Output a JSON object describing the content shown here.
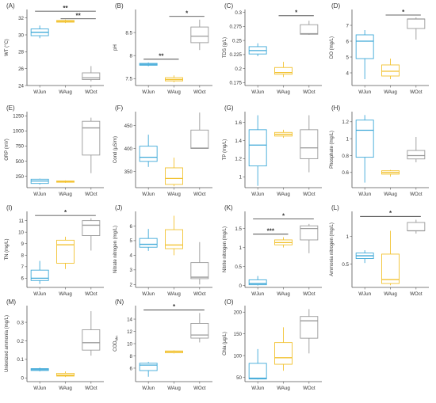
{
  "colors": {
    "WJun": "#3fa9d8",
    "WAug": "#f2c230",
    "WOct": "#9a9a9a",
    "axis": "#555555",
    "sig": "#333333"
  },
  "chart_data": [
    {
      "type": "box",
      "panel": "(A)",
      "ylabel": "WT (°C)",
      "categories": [
        "WJun",
        "WAug",
        "WOct"
      ],
      "ylim": [
        24,
        33
      ],
      "yticks": [
        24,
        26,
        28,
        30,
        32
      ],
      "boxes": [
        {
          "min": 29.6,
          "q1": 29.9,
          "median": 30.3,
          "q3": 30.7,
          "max": 31.1
        },
        {
          "min": 31.4,
          "q1": 31.5,
          "median": 31.6,
          "q3": 31.7,
          "max": 31.8
        },
        {
          "min": 24.5,
          "q1": 24.7,
          "median": 24.9,
          "q3": 25.5,
          "max": 26.3
        }
      ],
      "sig": [
        {
          "from": 0,
          "to": 2,
          "y": 32.8,
          "label": "**"
        },
        {
          "from": 1,
          "to": 2,
          "y": 31.9,
          "label": "**"
        }
      ]
    },
    {
      "type": "box",
      "panel": "(B)",
      "ylabel": "pH",
      "categories": [
        "WJun",
        "WAug",
        "WOct"
      ],
      "ylim": [
        7.35,
        9.0
      ],
      "yticks": [
        7.5,
        8.0,
        8.5
      ],
      "boxes": [
        {
          "min": 7.77,
          "q1": 7.79,
          "median": 7.81,
          "q3": 7.83,
          "max": 7.85
        },
        {
          "min": 7.42,
          "q1": 7.45,
          "median": 7.48,
          "q3": 7.52,
          "max": 7.57
        },
        {
          "min": 8.12,
          "q1": 8.28,
          "median": 8.42,
          "q3": 8.62,
          "max": 8.78
        }
      ],
      "sig": [
        {
          "from": 0,
          "to": 1,
          "y": 7.92,
          "label": "**"
        },
        {
          "from": 1,
          "to": 2,
          "y": 8.85,
          "label": "*"
        }
      ]
    },
    {
      "type": "box",
      "panel": "(C)",
      "ylabel": "TDS (g/L)",
      "categories": [
        "WJun",
        "WAug",
        "WOct"
      ],
      "ylim": [
        0.17,
        0.305
      ],
      "yticks": [
        0.175,
        0.2,
        0.225,
        0.25,
        0.275,
        0.3
      ],
      "boxes": [
        {
          "min": 0.222,
          "q1": 0.226,
          "median": 0.232,
          "q3": 0.239,
          "max": 0.245
        },
        {
          "min": 0.185,
          "q1": 0.19,
          "median": 0.193,
          "q3": 0.202,
          "max": 0.212
        },
        {
          "min": 0.26,
          "q1": 0.261,
          "median": 0.262,
          "q3": 0.278,
          "max": 0.285
        }
      ],
      "sig": [
        {
          "from": 1,
          "to": 2,
          "y": 0.294,
          "label": "*"
        }
      ]
    },
    {
      "type": "box",
      "panel": "(D)",
      "ylabel": "DO (mg/L)",
      "categories": [
        "WJun",
        "WAug",
        "WOct"
      ],
      "ylim": [
        3.2,
        8.0
      ],
      "yticks": [
        4,
        5,
        6,
        7
      ],
      "boxes": [
        {
          "min": 3.6,
          "q1": 4.9,
          "median": 6.0,
          "q3": 6.4,
          "max": 6.7
        },
        {
          "min": 3.6,
          "q1": 3.8,
          "median": 4.1,
          "q3": 4.5,
          "max": 4.9
        },
        {
          "min": 6.1,
          "q1": 6.8,
          "median": 7.4,
          "q3": 7.4,
          "max": 7.5
        }
      ],
      "sig": [
        {
          "from": 1,
          "to": 2,
          "y": 7.65,
          "label": "*"
        }
      ]
    },
    {
      "type": "box",
      "panel": "(E)",
      "ylabel": "ORP (mV)",
      "categories": [
        "WJun",
        "WAug",
        "WOct"
      ],
      "ylim": [
        60,
        1320
      ],
      "yticks": [
        250,
        500,
        750,
        1000,
        1250
      ],
      "boxes": [
        {
          "min": 110,
          "q1": 130,
          "median": 170,
          "q3": 200,
          "max": 210
        },
        {
          "min": 140,
          "q1": 150,
          "median": 160,
          "q3": 170,
          "max": 180
        },
        {
          "min": 300,
          "q1": 600,
          "median": 1050,
          "q3": 1160,
          "max": 1220
        }
      ],
      "sig": []
    },
    {
      "type": "box",
      "panel": "(F)",
      "ylabel": "Cond (μS/m)",
      "categories": [
        "WJun",
        "WAug",
        "WOct"
      ],
      "ylim": [
        315,
        480
      ],
      "yticks": [
        350,
        400,
        450
      ],
      "boxes": [
        {
          "min": 360,
          "q1": 372,
          "median": 381,
          "q3": 405,
          "max": 430
        },
        {
          "min": 318,
          "q1": 322,
          "median": 335,
          "q3": 358,
          "max": 380
        },
        {
          "min": 400,
          "q1": 400,
          "median": 401,
          "q3": 440,
          "max": 478
        }
      ],
      "sig": []
    },
    {
      "type": "box",
      "panel": "(G)",
      "ylabel": "TP (mg/L)",
      "categories": [
        "WJun",
        "WAug",
        "WOct"
      ],
      "ylim": [
        0.88,
        1.72
      ],
      "yticks": [
        1.0,
        1.2,
        1.4,
        1.6
      ],
      "boxes": [
        {
          "min": 0.9,
          "q1": 1.12,
          "median": 1.35,
          "q3": 1.52,
          "max": 1.68
        },
        {
          "min": 1.43,
          "q1": 1.45,
          "median": 1.47,
          "q3": 1.49,
          "max": 1.52
        },
        {
          "min": 1.05,
          "q1": 1.2,
          "median": 1.32,
          "q3": 1.52,
          "max": 1.68
        }
      ],
      "sig": []
    },
    {
      "type": "box",
      "panel": "(H)",
      "ylabel": "Phosphate (mg/L)",
      "categories": [
        "WJun",
        "WAug",
        "WOct"
      ],
      "ylim": [
        0.42,
        1.32
      ],
      "yticks": [
        0.6,
        0.8,
        1.0,
        1.2
      ],
      "boxes": [
        {
          "min": 0.48,
          "q1": 0.78,
          "median": 1.1,
          "q3": 1.22,
          "max": 1.28
        },
        {
          "min": 0.55,
          "q1": 0.58,
          "median": 0.6,
          "q3": 0.62,
          "max": 0.63
        },
        {
          "min": 0.72,
          "q1": 0.76,
          "median": 0.8,
          "q3": 0.86,
          "max": 1.02
        }
      ],
      "sig": []
    },
    {
      "type": "box",
      "panel": "(I)",
      "ylabel": "TN (mg/L)",
      "categories": [
        "WJun",
        "WAug",
        "WOct"
      ],
      "ylim": [
        5.2,
        11.8
      ],
      "yticks": [
        6,
        7,
        8,
        9,
        10,
        11
      ],
      "boxes": [
        {
          "min": 5.5,
          "q1": 5.8,
          "median": 6.0,
          "q3": 6.7,
          "max": 7.5
        },
        {
          "min": 6.8,
          "q1": 7.3,
          "median": 8.9,
          "q3": 9.3,
          "max": 9.6
        },
        {
          "min": 8.4,
          "q1": 9.7,
          "median": 10.6,
          "q3": 11.0,
          "max": 11.2
        }
      ],
      "sig": [
        {
          "from": 0,
          "to": 2,
          "y": 11.45,
          "label": "*"
        }
      ]
    },
    {
      "type": "box",
      "panel": "(J)",
      "ylabel": "Nitrate nitrogen (mg/L)",
      "categories": [
        "WJun",
        "WAug",
        "WOct"
      ],
      "ylim": [
        1.8,
        7.0
      ],
      "yticks": [
        2,
        3,
        4,
        5,
        6
      ],
      "boxes": [
        {
          "min": 4.3,
          "q1": 4.55,
          "median": 4.75,
          "q3": 5.15,
          "max": 5.8
        },
        {
          "min": 4.0,
          "q1": 4.45,
          "median": 4.7,
          "q3": 5.75,
          "max": 6.7
        },
        {
          "min": 2.0,
          "q1": 2.4,
          "median": 2.5,
          "q3": 3.5,
          "max": 4.9
        }
      ],
      "sig": []
    },
    {
      "type": "box",
      "panel": "(K)",
      "ylabel": "Nitrite nitrogen (mg/L)",
      "categories": [
        "WJun",
        "WAug",
        "WOct"
      ],
      "ylim": [
        -0.05,
        1.95
      ],
      "yticks": [
        0.0,
        0.5,
        1.0,
        1.5
      ],
      "boxes": [
        {
          "min": 0.0,
          "q1": 0.02,
          "median": 0.05,
          "q3": 0.15,
          "max": 0.25
        },
        {
          "min": 1.0,
          "q1": 1.07,
          "median": 1.13,
          "q3": 1.2,
          "max": 1.27
        },
        {
          "min": 0.85,
          "q1": 1.2,
          "median": 1.5,
          "q3": 1.57,
          "max": 1.62
        }
      ],
      "sig": [
        {
          "from": 0,
          "to": 1,
          "y": 1.35,
          "label": "***"
        },
        {
          "from": 0,
          "to": 2,
          "y": 1.75,
          "label": "*"
        }
      ]
    },
    {
      "type": "box",
      "panel": "(L)",
      "ylabel": "Ammonia nitrogen (mg/L)",
      "categories": [
        "WJun",
        "WAug",
        "WOct"
      ],
      "ylim": [
        0.08,
        1.45
      ],
      "yticks": [
        0.5,
        1.0
      ],
      "boxes": [
        {
          "min": 0.52,
          "q1": 0.6,
          "median": 0.65,
          "q3": 0.7,
          "max": 0.75
        },
        {
          "min": 0.12,
          "q1": 0.15,
          "median": 0.22,
          "q3": 0.68,
          "max": 1.1
        },
        {
          "min": 1.05,
          "q1": 1.1,
          "median": 1.1,
          "q3": 1.25,
          "max": 1.3
        }
      ],
      "sig": [
        {
          "from": 0,
          "to": 2,
          "y": 1.36,
          "label": "*"
        }
      ]
    },
    {
      "type": "box",
      "panel": "(M)",
      "ylabel": "Unionized ammonia (mg/L)",
      "categories": [
        "WJun",
        "WAug",
        "WOct"
      ],
      "ylim": [
        -0.02,
        0.39
      ],
      "yticks": [
        0.0,
        0.1,
        0.2,
        0.3
      ],
      "boxes": [
        {
          "min": 0.035,
          "q1": 0.04,
          "median": 0.045,
          "q3": 0.05,
          "max": 0.055
        },
        {
          "min": 0.005,
          "q1": 0.01,
          "median": 0.015,
          "q3": 0.025,
          "max": 0.035
        },
        {
          "min": 0.12,
          "q1": 0.15,
          "median": 0.19,
          "q3": 0.26,
          "max": 0.36
        }
      ],
      "sig": []
    },
    {
      "type": "box",
      "panel": "(N)",
      "ylabel": "COD_Mn",
      "categories": [
        "WJun",
        "WAug",
        "WOct"
      ],
      "ylim": [
        3.8,
        16.2
      ],
      "yticks": [
        6,
        8,
        10,
        12,
        14
      ],
      "boxes": [
        {
          "min": 4.6,
          "q1": 5.6,
          "median": 6.5,
          "q3": 6.8,
          "max": 7.0
        },
        {
          "min": 8.4,
          "q1": 8.5,
          "median": 8.7,
          "q3": 8.8,
          "max": 8.9
        },
        {
          "min": 10.2,
          "q1": 10.9,
          "median": 11.4,
          "q3": 13.3,
          "max": 15.0
        }
      ],
      "sig": [
        {
          "from": 0,
          "to": 2,
          "y": 15.5,
          "label": "*"
        }
      ]
    },
    {
      "type": "box",
      "panel": "(O)",
      "ylabel": "Chla (μg/L)",
      "categories": [
        "WJun",
        "WAug",
        "WOct"
      ],
      "ylim": [
        40,
        215
      ],
      "yticks": [
        50,
        100,
        150,
        200
      ],
      "boxes": [
        {
          "min": 45,
          "q1": 46,
          "median": 48,
          "q3": 82,
          "max": 115
        },
        {
          "min": 65,
          "q1": 80,
          "median": 95,
          "q3": 130,
          "max": 165
        },
        {
          "min": 105,
          "q1": 140,
          "median": 180,
          "q3": 190,
          "max": 207
        }
      ],
      "sig": []
    }
  ]
}
